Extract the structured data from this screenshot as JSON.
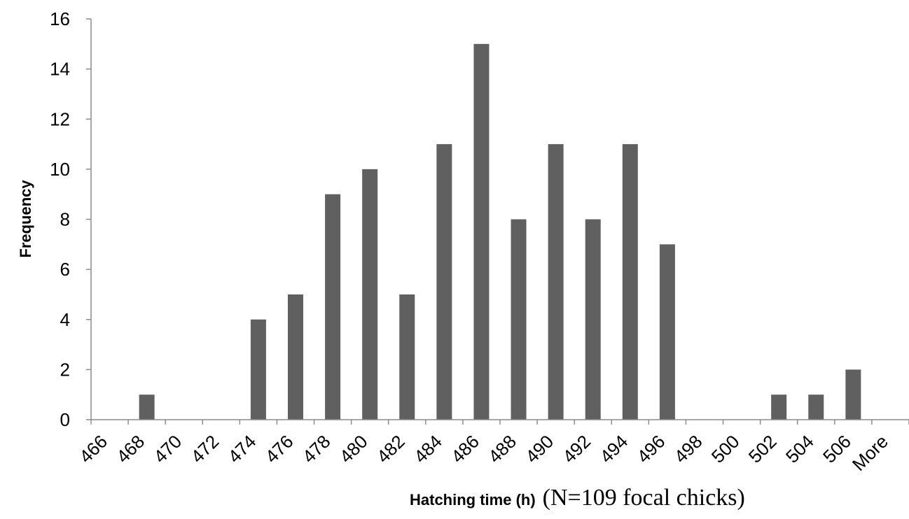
{
  "chart_data": {
    "type": "bar",
    "categories": [
      "466",
      "468",
      "470",
      "472",
      "474",
      "476",
      "478",
      "480",
      "482",
      "484",
      "486",
      "488",
      "490",
      "492",
      "494",
      "496",
      "498",
      "500",
      "502",
      "504",
      "506",
      "More"
    ],
    "values": [
      0,
      1,
      0,
      0,
      4,
      5,
      9,
      10,
      5,
      11,
      15,
      8,
      11,
      8,
      11,
      7,
      0,
      0,
      1,
      1,
      2,
      0
    ],
    "xlabel": "Hatching time (h)",
    "xlabel_suffix": "(N=109 focal chicks)",
    "ylabel": "Frequency",
    "ylim": [
      0,
      16
    ],
    "yticks": [
      0,
      2,
      4,
      6,
      8,
      10,
      12,
      14,
      16
    ],
    "bar_color": "#606060",
    "grid": false,
    "legend": "none"
  }
}
